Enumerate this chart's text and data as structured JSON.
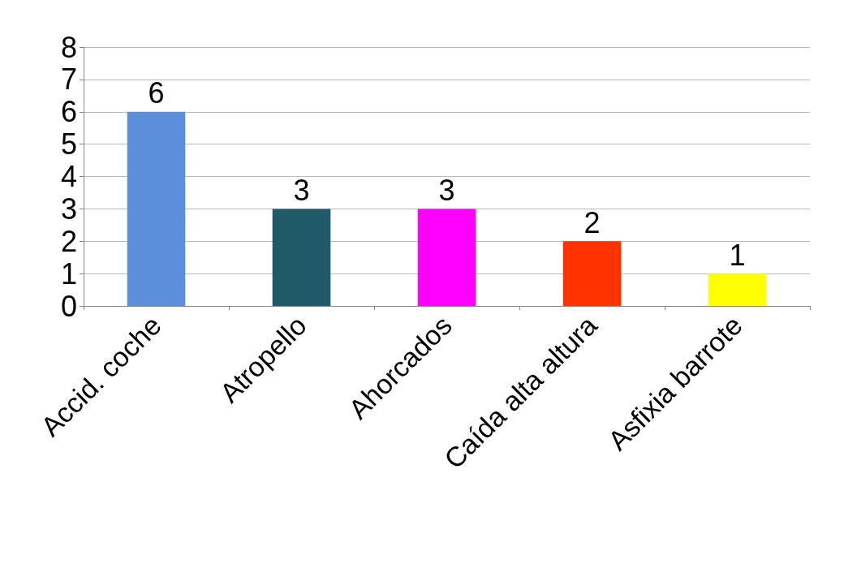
{
  "chart_data": {
    "type": "bar",
    "categories": [
      "Accid. coche",
      "Atropello",
      "Ahorcados",
      "Caída alta altura",
      "Asfixia barrote"
    ],
    "values": [
      6,
      3,
      3,
      2,
      1
    ],
    "colors": [
      "#5b8fd9",
      "#215a68",
      "#ff00ff",
      "#ff3300",
      "#ffff00"
    ],
    "ylim": [
      0,
      8
    ],
    "yticks": [
      0,
      1,
      2,
      3,
      4,
      5,
      6,
      7,
      8
    ],
    "grid": "y",
    "data_labels": true
  }
}
